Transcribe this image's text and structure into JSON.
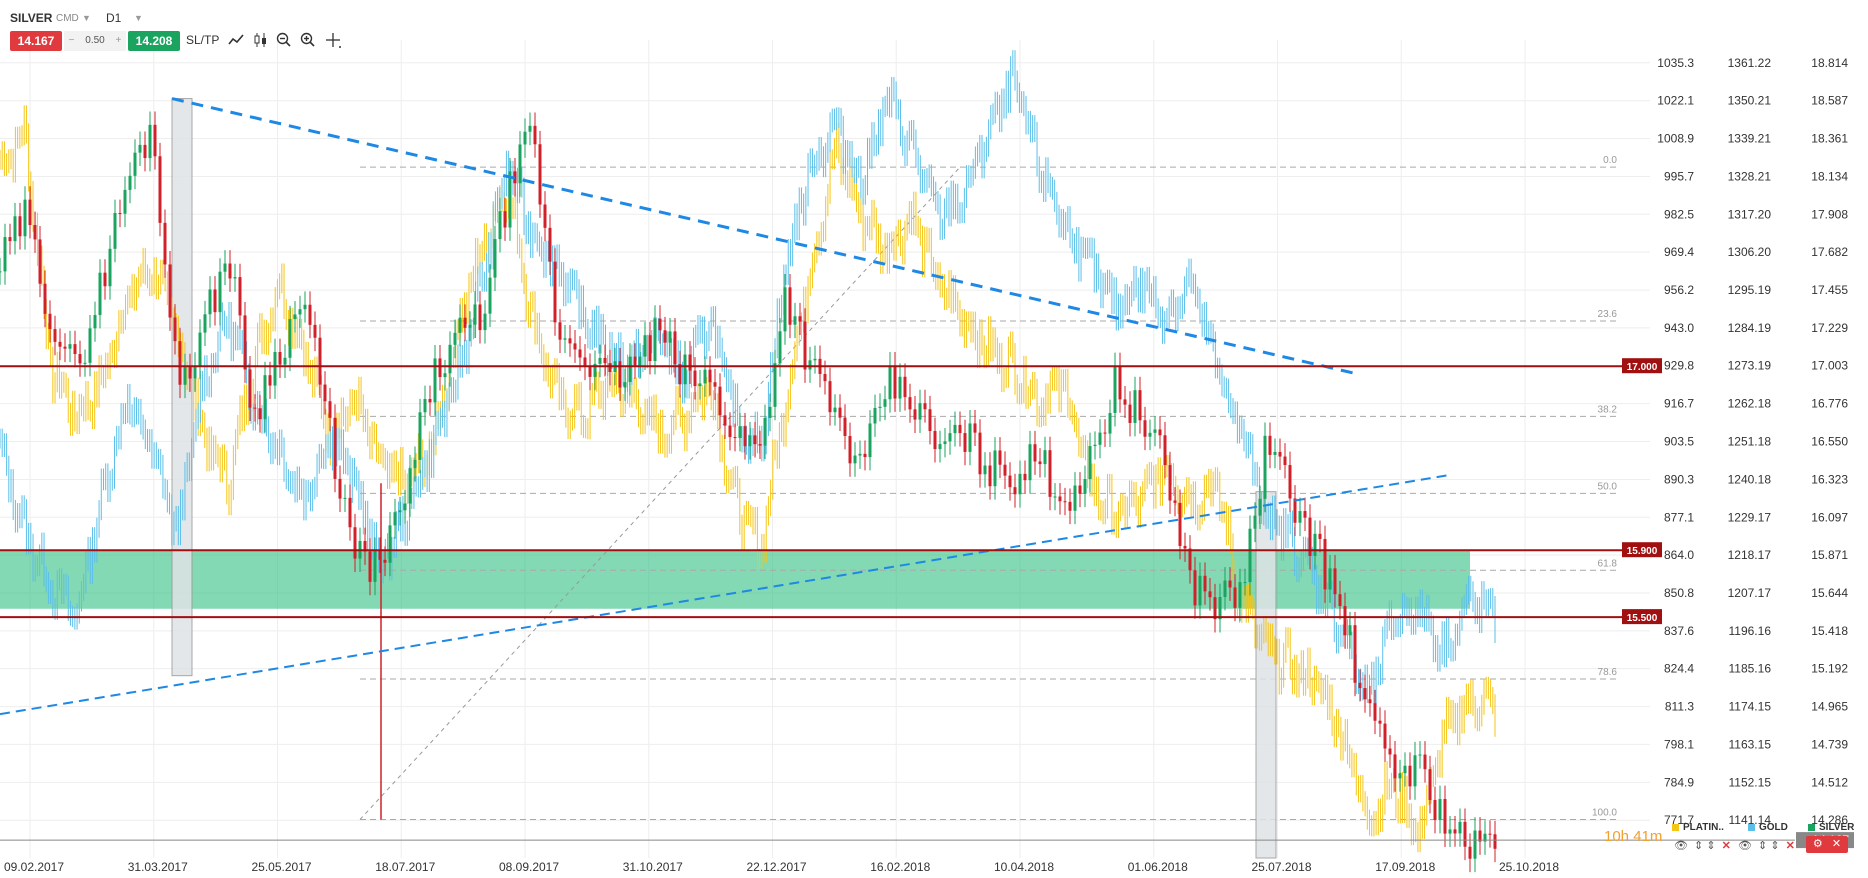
{
  "toolbar": {
    "symbol": "SILVER",
    "market": "CMD",
    "timeframe": "D1",
    "sell_price": "14.167",
    "quantity": "0.50",
    "quantity_minus": "−",
    "quantity_plus": "+",
    "buy_price": "14.208",
    "sltp": "SL/TP",
    "icons": [
      "line-chart-icon",
      "candlestick-icon",
      "zoom-out-icon",
      "zoom-in-icon",
      "crosshair-icon"
    ]
  },
  "timer": {
    "hours": "10h",
    "minutes": "41m"
  },
  "legend": [
    {
      "name": "PLATIN..",
      "color": "#f5c518"
    },
    {
      "name": "GOLD",
      "color": "#5bbfe9"
    },
    {
      "name": "SILVER",
      "color": "#1aa45f"
    }
  ],
  "colors": {
    "bull": "#1aa45f",
    "bear": "#d0202a",
    "platinum": "#f5c518",
    "gold": "#5bbfe9",
    "level": "#a01010",
    "zone": "#2ec080",
    "trend": "#1e88e5"
  },
  "chart_data": {
    "type": "line",
    "x_ticks": [
      "09.02.2017",
      "31.03.2017",
      "25.05.2017",
      "18.07.2017",
      "08.09.2017",
      "31.10.2017",
      "22.12.2017",
      "16.02.2018",
      "10.04.2018",
      "01.06.2018",
      "25.07.2018",
      "17.09.2018",
      "25.10.2018"
    ],
    "axes": [
      {
        "name": "PLATINUM",
        "ticks": [
          "1035.3",
          "1022.1",
          "1008.9",
          "995.7",
          "982.5",
          "969.4",
          "956.2",
          "943.0",
          "929.8",
          "916.7",
          "903.5",
          "890.3",
          "877.1",
          "864.0",
          "850.8",
          "837.6",
          "824.4",
          "811.3",
          "798.1",
          "784.9",
          "771.7"
        ]
      },
      {
        "name": "GOLD",
        "ticks": [
          "1361.22",
          "1350.21",
          "1339.21",
          "1328.21",
          "1317.20",
          "1306.20",
          "1295.19",
          "1284.19",
          "1273.19",
          "1262.18",
          "1251.18",
          "1240.18",
          "1229.17",
          "1218.17",
          "1207.17",
          "1196.16",
          "1185.16",
          "1174.15",
          "1163.15",
          "1152.15",
          "1141.14"
        ]
      },
      {
        "name": "SILVER",
        "ticks": [
          "18.814",
          "18.587",
          "18.361",
          "18.134",
          "17.908",
          "17.682",
          "17.455",
          "17.229",
          "17.003",
          "16.776",
          "16.550",
          "16.323",
          "16.097",
          "15.871",
          "15.644",
          "15.418",
          "15.192",
          "14.965",
          "14.739",
          "14.512",
          "14.286"
        ]
      }
    ],
    "ylim_silver": [
      14.06,
      18.95
    ],
    "current_price": "14.167",
    "horizontal_levels": [
      {
        "value": 17.0,
        "label": "17.000"
      },
      {
        "value": 15.9,
        "label": "15.900"
      },
      {
        "value": 15.5,
        "label": "15.500"
      }
    ],
    "support_zone": [
      15.55,
      15.9
    ],
    "fibonacci": [
      {
        "level": "0.0",
        "value": 18.19
      },
      {
        "level": "23.6",
        "value": 17.27
      },
      {
        "level": "38.2",
        "value": 16.7
      },
      {
        "level": "50.0",
        "value": 16.24
      },
      {
        "level": "61.8",
        "value": 15.78
      },
      {
        "level": "78.6",
        "value": 15.13
      },
      {
        "level": "100.0",
        "value": 14.29
      }
    ],
    "series": [
      {
        "name": "SILVER",
        "style": "candlestick",
        "path": [
          17.6,
          17.9,
          17.3,
          16.95,
          17.5,
          18.1,
          18.45,
          16.9,
          17.2,
          17.7,
          16.7,
          17.1,
          17.4,
          16.6,
          15.85,
          15.8,
          16.2,
          16.9,
          17.15,
          17.3,
          18.0,
          18.4,
          17.2,
          17.1,
          16.9,
          17.0,
          17.2,
          16.95,
          16.9,
          16.6,
          16.5,
          17.45,
          17.0,
          16.7,
          16.35,
          16.9,
          16.8,
          16.5,
          16.6,
          16.4,
          16.35,
          16.45,
          16.2,
          16.4,
          16.9,
          16.7,
          16.4,
          15.7,
          15.6,
          15.65,
          16.55,
          16.2,
          15.9,
          15.5,
          14.9,
          14.6,
          14.6,
          14.3,
          14.1,
          14.18
        ]
      },
      {
        "name": "GOLD",
        "style": "line",
        "path": [
          16.5,
          16.0,
          15.7,
          15.5,
          16.2,
          16.8,
          16.5,
          16.0,
          16.9,
          17.3,
          16.8,
          16.5,
          16.2,
          16.6,
          16.3,
          15.8,
          16.1,
          16.5,
          16.9,
          17.5,
          18.2,
          17.8,
          17.6,
          17.3,
          17.1,
          17.0,
          17.2,
          16.9,
          17.3,
          16.7,
          16.5,
          17.6,
          18.2,
          18.45,
          18.1,
          18.6,
          18.3,
          17.9,
          18.0,
          18.4,
          18.7,
          18.2,
          17.85,
          17.6,
          17.35,
          17.5,
          17.3,
          17.5,
          17.0,
          16.6,
          16.1,
          15.95,
          15.7,
          15.4,
          15.0,
          15.5,
          15.55,
          15.3,
          15.6,
          15.5
        ]
      },
      {
        "name": "PLATINUM",
        "style": "line",
        "path": [
          18.2,
          18.4,
          17.0,
          16.7,
          16.9,
          17.4,
          17.6,
          17.2,
          16.6,
          16.3,
          17.0,
          17.5,
          17.1,
          16.6,
          16.8,
          16.4,
          16.3,
          16.5,
          17.2,
          17.7,
          18.1,
          17.3,
          16.8,
          16.7,
          16.9,
          16.8,
          16.6,
          16.7,
          16.9,
          16.2,
          15.9,
          16.8,
          17.6,
          18.3,
          17.9,
          17.7,
          17.9,
          17.5,
          17.3,
          17.1,
          17.0,
          16.8,
          16.9,
          16.3,
          16.1,
          16.2,
          16.4,
          16.2,
          16.3,
          15.6,
          15.3,
          15.2,
          15.1,
          14.8,
          14.3,
          14.5,
          14.2,
          14.8,
          15.0,
          14.98
        ]
      }
    ]
  }
}
